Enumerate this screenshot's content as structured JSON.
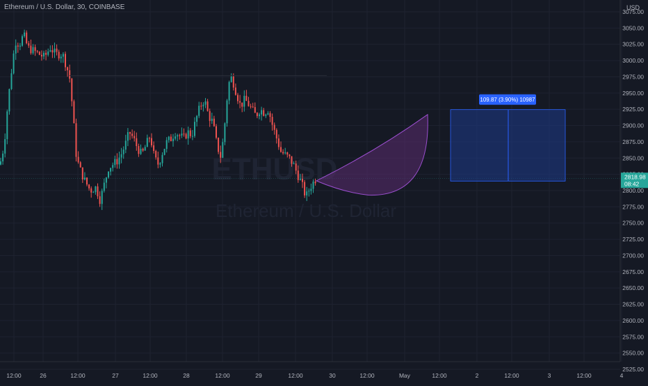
{
  "header": {
    "symbol_title": "Ethereum / U.S. Dollar, 30, COINBASE",
    "currency": "USD"
  },
  "watermark": {
    "ticker": "ETHUSD",
    "name": "Ethereum / U.S. Dollar"
  },
  "colors": {
    "background": "#151924",
    "up": "#26a69a",
    "down": "#ef5350",
    "measure_fill": "#1e3a8a",
    "measure_border": "#2962ff",
    "arc_fill": "#5b2c6f",
    "arc_border": "#9c4fd0",
    "price_label": "#26a69a"
  },
  "chart_data": {
    "type": "candlestick",
    "ylim": [
      2525,
      3100
    ],
    "y_ticks": [
      "3075.00",
      "3050.00",
      "3025.00",
      "3000.00",
      "2975.00",
      "2950.00",
      "2925.00",
      "2900.00",
      "2875.00",
      "2850.00",
      "2825.00",
      "2800.00",
      "2775.00",
      "2750.00",
      "2725.00",
      "2700.00",
      "2675.00",
      "2650.00",
      "2625.00",
      "2600.00",
      "2575.00",
      "2550.00",
      "2525.00"
    ],
    "x_ticks": [
      "12:00",
      "26",
      "12:00",
      "27",
      "12:00",
      "28",
      "12:00",
      "29",
      "12:00",
      "30",
      "12:00",
      "May",
      "12:00",
      "2",
      "12:00",
      "3",
      "12:00",
      "4"
    ],
    "current_price": "2818.98",
    "countdown": "08:42",
    "measure_label": "109.87 (3.90%) 10987",
    "measure_range": [
      2814.6,
      2924.5
    ],
    "candles": []
  }
}
